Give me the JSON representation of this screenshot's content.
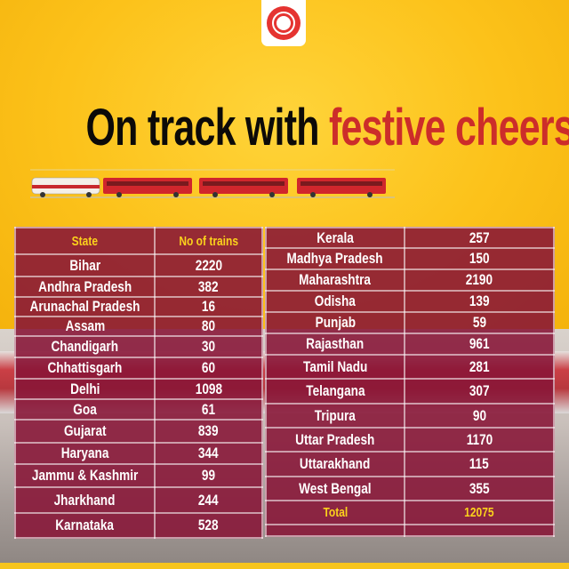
{
  "title": {
    "part1": "On track with",
    "part2": "festive cheers"
  },
  "logo": "Indian Railways emblem",
  "colors": {
    "background": "#fcc21a",
    "table": "#87143a",
    "highlight": "#fbd21c",
    "title_accent": "#cc2d2a"
  },
  "table": {
    "headers": [
      "State",
      "No of trains"
    ],
    "left_rows": [
      [
        "Bihar",
        "2220"
      ],
      [
        "Andhra Pradesh",
        "382"
      ],
      [
        "Arunachal Pradesh",
        "16"
      ],
      [
        "Assam",
        "80"
      ],
      [
        "Chandigarh",
        "30"
      ],
      [
        "Chhattisgarh",
        "60"
      ],
      [
        "Delhi",
        "1098"
      ],
      [
        "Goa",
        "61"
      ],
      [
        "Gujarat",
        "839"
      ],
      [
        "Haryana",
        "344"
      ],
      [
        "Jammu & Kashmir",
        "99"
      ],
      [
        "Jharkhand",
        "244"
      ],
      [
        "Karnataka",
        "528"
      ]
    ],
    "right_rows": [
      [
        "Kerala",
        "257"
      ],
      [
        "Madhya Pradesh",
        "150"
      ],
      [
        "Maharashtra",
        "2190"
      ],
      [
        "Odisha",
        "139"
      ],
      [
        "Punjab",
        "59"
      ],
      [
        "Rajasthan",
        "961"
      ],
      [
        "Tamil Nadu",
        "281"
      ],
      [
        "Telangana",
        "307"
      ],
      [
        "Tripura",
        "90"
      ],
      [
        "Uttar Pradesh",
        "1170"
      ],
      [
        "Uttarakhand",
        "115"
      ],
      [
        "West Bengal",
        "355"
      ]
    ],
    "total": {
      "label": "Total",
      "value": "12075"
    }
  }
}
